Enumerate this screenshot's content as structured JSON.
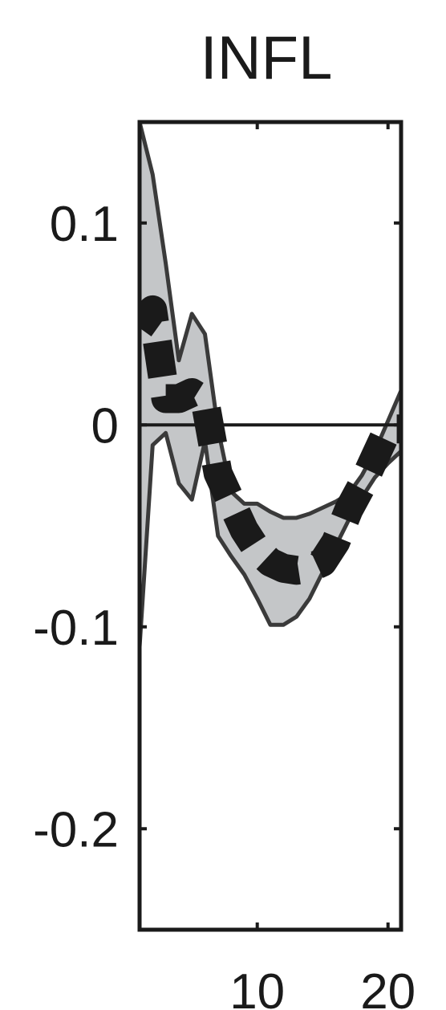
{
  "chart_data": {
    "type": "area",
    "title": "INFL",
    "xlabel": "",
    "ylabel": "",
    "xlim": [
      1,
      21
    ],
    "ylim": [
      -0.25,
      0.15
    ],
    "x_ticks": [
      10,
      20
    ],
    "x_tick_labels": [
      "10",
      "20"
    ],
    "y_ticks": [
      0.1,
      0,
      -0.1,
      -0.2
    ],
    "y_tick_labels": [
      "0.1",
      "0",
      "-0.1",
      "-0.2"
    ],
    "zero_line": true,
    "grid": false,
    "band_color": "#c4c6c8",
    "band_edge_color": "#3a3a3a",
    "line_color": "#1a1a1a",
    "series": [
      {
        "role": "upper",
        "x": [
          1,
          2,
          3,
          4,
          5,
          6,
          7,
          8,
          9,
          10,
          11,
          12,
          13,
          14,
          15,
          16,
          17,
          18,
          19,
          20,
          21
        ],
        "y": [
          0.15,
          0.124,
          0.08,
          0.032,
          0.055,
          0.045,
          -0.002,
          -0.033,
          -0.039,
          -0.039,
          -0.043,
          -0.046,
          -0.046,
          -0.044,
          -0.041,
          -0.038,
          -0.034,
          -0.025,
          -0.013,
          0.002,
          0.017
        ]
      },
      {
        "role": "estimate",
        "x": [
          1,
          2,
          3,
          4,
          5,
          6,
          7,
          8,
          9,
          10,
          11,
          12,
          13,
          14,
          15,
          16,
          17,
          18,
          19,
          20,
          21
        ],
        "y": [
          0.048,
          0.057,
          0.013,
          0.013,
          0.016,
          0.012,
          -0.024,
          -0.038,
          -0.052,
          -0.062,
          -0.068,
          -0.071,
          -0.072,
          -0.071,
          -0.068,
          -0.058,
          -0.042,
          -0.03,
          -0.016,
          -0.002,
          -0.002
        ]
      },
      {
        "role": "lower",
        "x": [
          1,
          2,
          3,
          4,
          5,
          6,
          7,
          8,
          9,
          10,
          11,
          12,
          13,
          14,
          15,
          16,
          17,
          18,
          19,
          20,
          21
        ],
        "y": [
          -0.11,
          -0.01,
          -0.004,
          -0.029,
          -0.037,
          -0.008,
          -0.055,
          -0.065,
          -0.074,
          -0.086,
          -0.099,
          -0.099,
          -0.095,
          -0.086,
          -0.073,
          -0.06,
          -0.047,
          -0.036,
          -0.026,
          -0.019,
          -0.013
        ]
      }
    ]
  }
}
